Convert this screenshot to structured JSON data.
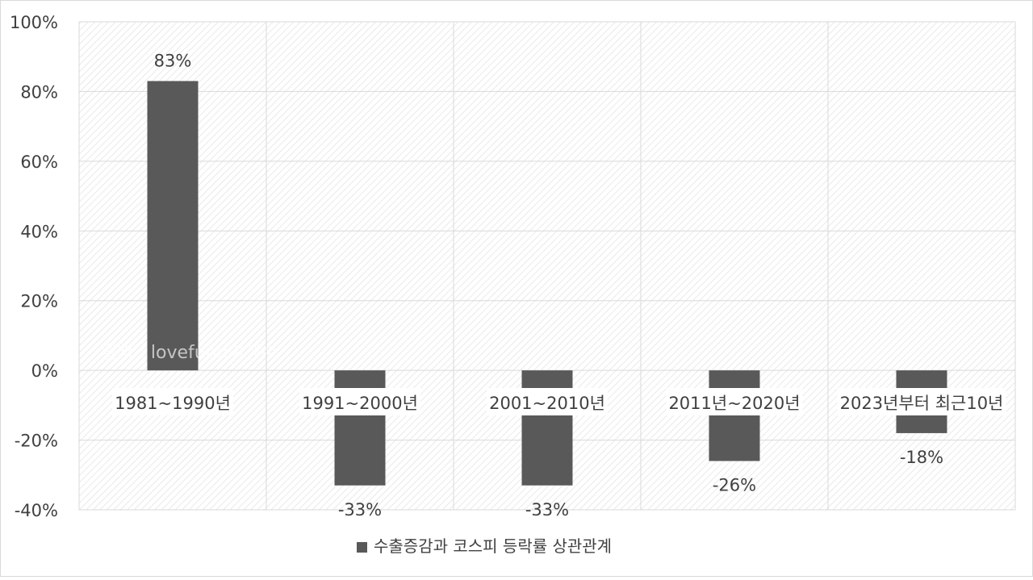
{
  "chart_data": {
    "type": "bar",
    "categories": [
      "1981~1990년",
      "1991~2000년",
      "2001~2010년",
      "2011년~2020년",
      "2023년부터 최근10년"
    ],
    "series": [
      {
        "name": "수출증감과 코스피 등락률 상관관계",
        "values": [
          83,
          -33,
          -33,
          -26,
          -18
        ]
      }
    ],
    "data_labels": [
      "83%",
      "-33%",
      "-33%",
      "-26%",
      "-18%"
    ],
    "ylim": [
      -40,
      100
    ],
    "yticks": [
      -40,
      -20,
      0,
      20,
      40,
      60,
      80,
      100
    ],
    "ytick_labels": [
      "-40%",
      "-20%",
      "0%",
      "20%",
      "40%",
      "60%",
      "80%",
      "100%"
    ],
    "grid": true,
    "legend_position": "bottom",
    "colors": {
      "bar": "#595959",
      "grid": "#d9d9d9",
      "text": "#404040",
      "hatch": "#e4e4e4"
    }
  },
  "watermark": "출처 : lovefund이성수"
}
